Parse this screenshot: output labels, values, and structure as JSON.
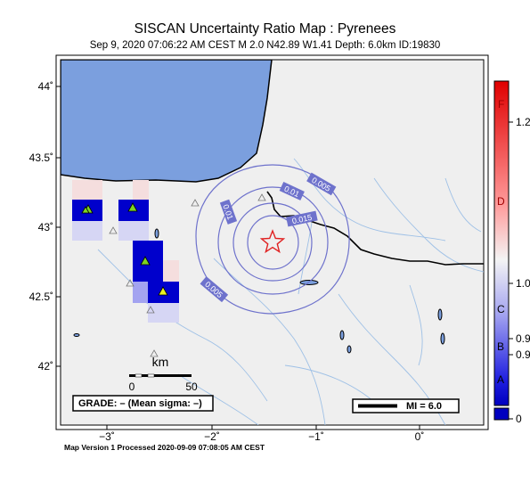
{
  "header": {
    "title": "SISCAN Uncertainty Ratio Map : Pyrenees",
    "subtitle": "Sep  9, 2020 07:06:22 AM CEST   M 2.0   N42.89 W1.41   Depth: 6.0km   ID:19830"
  },
  "footer": "Map Version 1 Processed 2020-09-09 07:08:05 AM CEST",
  "map": {
    "colors": {
      "sea": "#7b9fde",
      "land": "#efefef",
      "river": "#9ec0e6",
      "contour": "#6e72cc",
      "border": "#000000",
      "epicenter": "#e02020"
    },
    "lat_ticks": [
      "44˚",
      "43.5˚",
      "43˚",
      "42.5˚",
      "42˚"
    ],
    "lon_ticks": [
      "−3˚",
      "−2˚",
      "−1˚",
      "0˚"
    ],
    "contours": [
      "0.01",
      "0.005",
      "0.01",
      "0.015",
      "0.005"
    ],
    "scale": {
      "unit": "km",
      "labels": [
        "0",
        "50"
      ]
    },
    "grade": "GRADE: – (Mean sigma: –)",
    "mi_legend": "MI = 6.0",
    "epicenter_icon": "star-icon",
    "station_icon": "triangle-icon"
  },
  "colorbar": {
    "letters": [
      "F",
      "D",
      "C",
      "B",
      "A"
    ],
    "values": [
      "1.2",
      "1.0",
      "0.9",
      "0.9",
      "0"
    ],
    "colors": [
      "#e00000",
      "#ff9a9a",
      "#f4f4f4",
      "#a3a3f0",
      "#2020e0",
      "#0000c0"
    ]
  }
}
